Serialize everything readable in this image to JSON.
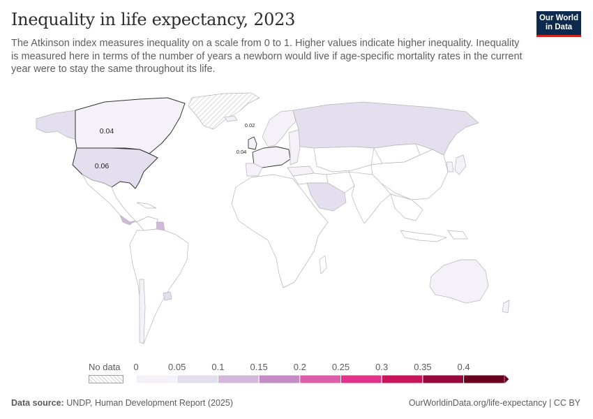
{
  "header": {
    "title": "Inequality in life expectancy, 2023",
    "subtitle": "The Atkinson index measures inequality on a scale from 0 to 1. Higher values indicate higher inequality. Inequality is measured here in terms of the number of years a newborn would live if age-specific mortality rates in the current year were to stay the same throughout its life."
  },
  "logo": {
    "line1": "Our World",
    "line2": "in Data"
  },
  "map": {
    "labels": {
      "canada": "0.04",
      "usa": "0.06",
      "north_europe": "0.02",
      "west_europe": "0.04"
    }
  },
  "legend": {
    "no_data_label": "No data",
    "ticks": [
      "0",
      "0.05",
      "0.1",
      "0.15",
      "0.2",
      "0.25",
      "0.3",
      "0.35",
      "0.4"
    ],
    "bin_colors": [
      "#f4f2f8",
      "#e3dfee",
      "#d4b8dc",
      "#c48cc4",
      "#dc5eaa",
      "#e0338a",
      "#c8145a",
      "#98083a",
      "#6a0020"
    ],
    "no_data_color": "#e8e8e8"
  },
  "footer": {
    "source_label": "Data source:",
    "source_text": "UNDP, Human Development Report (2025)",
    "url": "OurWorldinData.org/life-expectancy | CC BY"
  }
}
